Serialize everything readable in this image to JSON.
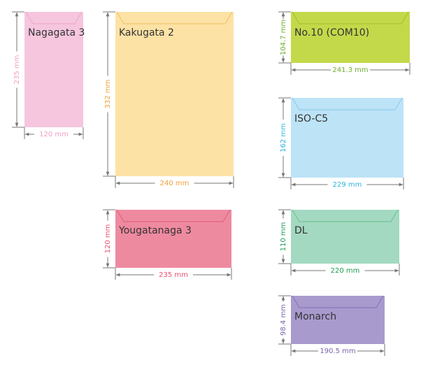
{
  "envelopes": [
    {
      "name": "Nagagata 3",
      "height": "235 mm",
      "width": "120 mm",
      "fill": "#f6c6de",
      "flap": "#f0a9cb",
      "label_color": "#f29ec4"
    },
    {
      "name": "Kakugata 2",
      "height": "332 mm",
      "width": "240 mm",
      "fill": "#fde2a6",
      "flap": "#f3c46b",
      "label_color": "#f0a03a"
    },
    {
      "name": "Yougatanaga 3",
      "height": "120 mm",
      "width": "235 mm",
      "fill": "#ee8aa0",
      "flap": "#e2637f",
      "label_color": "#e8506e"
    },
    {
      "name": "No.10 (COM10)",
      "height": "104.7 mm",
      "width": "241.3 mm",
      "fill": "#c4d94a",
      "flap": "#a9c233",
      "label_color": "#6fae2d"
    },
    {
      "name": "ISO-C5",
      "height": "162 mm",
      "width": "229 mm",
      "fill": "#bde3f7",
      "flap": "#8fcdee",
      "label_color": "#2eb6e0"
    },
    {
      "name": "DL",
      "height": "110 mm",
      "width": "220 mm",
      "fill": "#a3d9c1",
      "flap": "#6fc496",
      "label_color": "#1e9e50"
    },
    {
      "name": "Monarch",
      "height": "98.4 mm",
      "width": "190.5 mm",
      "fill": "#a99ace",
      "flap": "#8a79b8",
      "label_color": "#7b63a8"
    }
  ]
}
